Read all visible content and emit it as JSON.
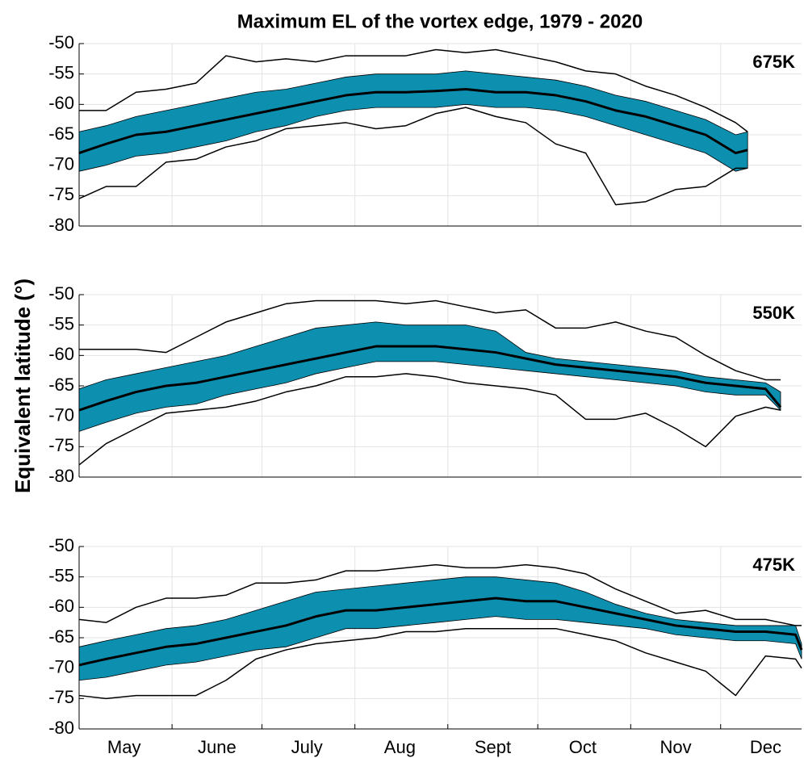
{
  "chart_data": [
    {
      "type": "line",
      "title": "Maximum EL of the vortex edge, 1979 - 2020",
      "annotation": "675K",
      "x": [
        1,
        10,
        20,
        30,
        40,
        50,
        60,
        70,
        80,
        90,
        100,
        110,
        120,
        130,
        140,
        150,
        160,
        170,
        180,
        190,
        200,
        210,
        220,
        224
      ],
      "xlim": [
        1,
        242
      ],
      "xgrid": [
        32,
        62,
        93,
        124,
        154,
        185,
        215
      ],
      "ylim": [
        -80,
        -50
      ],
      "yticks": [
        -50,
        -55,
        -60,
        -65,
        -70,
        -75,
        -80
      ],
      "grid": true,
      "band": {
        "color": "#0d90b0",
        "upper": [
          -64.5,
          -63.5,
          -62,
          -61,
          -60,
          -59,
          -58,
          -57.5,
          -56.5,
          -55.5,
          -55,
          -55,
          -55,
          -54.5,
          -55,
          -55.5,
          -56,
          -57,
          -58.5,
          -59.5,
          -61,
          -62.5,
          -65,
          -64.5
        ],
        "lower": [
          -71,
          -70,
          -68.5,
          -68,
          -67,
          -66,
          -64.5,
          -63.5,
          -62,
          -61,
          -60.5,
          -60.5,
          -60.5,
          -60,
          -60.5,
          -60.5,
          -61,
          -62,
          -63.5,
          -65,
          -66.5,
          -68,
          -71,
          -70.5
        ]
      },
      "series": [
        {
          "color": "#000000",
          "width": 1.5,
          "values": [
            -61,
            -61,
            -58,
            -57.5,
            -56.5,
            -52,
            -53,
            -52.5,
            -53,
            -52,
            -52,
            -52,
            -51,
            -51.5,
            -51,
            -52,
            -53,
            -54.5,
            -55,
            -57,
            -58.5,
            -60.5,
            -63,
            -64.5
          ]
        },
        {
          "color": "#000000",
          "width": 1.5,
          "values": [
            -75.5,
            -73.5,
            -73.5,
            -69.5,
            -69,
            -67,
            -66,
            -64,
            -63.5,
            -63,
            -64,
            -63.5,
            -61.5,
            -60.5,
            -62,
            -63,
            -66.5,
            -68,
            -76.5,
            -76,
            -74,
            -73.5,
            -70.5,
            -70.5
          ]
        },
        {
          "color": "#000000",
          "width": 3,
          "values": [
            -68,
            -66.5,
            -65,
            -64.5,
            -63.5,
            -62.5,
            -61.5,
            -60.5,
            -59.5,
            -58.5,
            -58,
            -58,
            -57.8,
            -57.5,
            -58,
            -58,
            -58.5,
            -59.5,
            -61,
            -62,
            -63.5,
            -65,
            -68,
            -67.5
          ]
        }
      ]
    },
    {
      "type": "line",
      "ylabel": "Equivalent latitude (°)",
      "annotation": "550K",
      "x": [
        1,
        10,
        20,
        30,
        40,
        50,
        60,
        70,
        80,
        90,
        100,
        110,
        120,
        130,
        140,
        150,
        160,
        170,
        180,
        190,
        200,
        210,
        220,
        230,
        235
      ],
      "xlim": [
        1,
        242
      ],
      "xgrid": [
        32,
        62,
        93,
        124,
        154,
        185,
        215
      ],
      "ylim": [
        -80,
        -50
      ],
      "yticks": [
        -50,
        -55,
        -60,
        -65,
        -70,
        -75,
        -80
      ],
      "grid": true,
      "band": {
        "color": "#0d90b0",
        "upper": [
          -65.5,
          -64,
          -63,
          -62,
          -61,
          -60,
          -58.5,
          -57,
          -55.5,
          -55,
          -54.5,
          -55,
          -55,
          -55,
          -56,
          -59.5,
          -60.5,
          -61,
          -61.5,
          -62,
          -62.5,
          -63.5,
          -64,
          -64.5,
          -66
        ],
        "lower": [
          -72.5,
          -71,
          -69.5,
          -68.5,
          -68,
          -66.5,
          -65.5,
          -64.5,
          -63,
          -62,
          -61,
          -61,
          -61,
          -61.5,
          -62,
          -62.5,
          -63,
          -63.5,
          -64,
          -64.5,
          -65,
          -66,
          -66.5,
          -66.5,
          -69
        ]
      },
      "series": [
        {
          "color": "#000000",
          "width": 1.5,
          "values": [
            -59,
            -59,
            -59,
            -59.5,
            -57,
            -54.5,
            -53,
            -51.5,
            -51,
            -51,
            -51,
            -51.5,
            -51,
            -52,
            -53,
            -52.5,
            -55.5,
            -55.5,
            -54.5,
            -56,
            -57,
            -60,
            -62.5,
            -64,
            -64
          ]
        },
        {
          "color": "#000000",
          "width": 1.5,
          "values": [
            -78,
            -74.5,
            -72,
            -69.5,
            -69,
            -68.5,
            -67.5,
            -66,
            -65,
            -63.5,
            -63.5,
            -63,
            -63.5,
            -64.5,
            -65,
            -65.5,
            -66.5,
            -70.5,
            -70.5,
            -69.5,
            -72,
            -75,
            -70,
            -68.5,
            -69
          ]
        },
        {
          "color": "#000000",
          "width": 3,
          "values": [
            -69,
            -67.5,
            -66,
            -65,
            -64.5,
            -63.5,
            -62.5,
            -61.5,
            -60.5,
            -59.5,
            -58.5,
            -58.5,
            -58.5,
            -59,
            -59.5,
            -60.5,
            -61.5,
            -62,
            -62.5,
            -63,
            -63.5,
            -64.5,
            -65,
            -65.5,
            -68.5
          ]
        }
      ]
    },
    {
      "type": "line",
      "annotation": "475K",
      "x": [
        1,
        10,
        20,
        30,
        40,
        50,
        60,
        70,
        80,
        90,
        100,
        110,
        120,
        130,
        140,
        150,
        160,
        170,
        180,
        190,
        200,
        210,
        220,
        230,
        240,
        242
      ],
      "xlim": [
        1,
        242
      ],
      "xgrid": [
        32,
        62,
        93,
        124,
        154,
        185,
        215
      ],
      "xticks": [
        {
          "value": 16,
          "label": "May"
        },
        {
          "value": 47,
          "label": "June"
        },
        {
          "value": 77,
          "label": "July"
        },
        {
          "value": 108,
          "label": "Aug"
        },
        {
          "value": 139,
          "label": "Sept"
        },
        {
          "value": 169,
          "label": "Oct"
        },
        {
          "value": 200,
          "label": "Nov"
        },
        {
          "value": 230,
          "label": "Dec"
        }
      ],
      "ylim": [
        -80,
        -50
      ],
      "yticks": [
        -50,
        -55,
        -60,
        -65,
        -70,
        -75,
        -80
      ],
      "grid": true,
      "band": {
        "color": "#0d90b0",
        "upper": [
          -66.5,
          -65.5,
          -64.5,
          -63.5,
          -63,
          -62,
          -60.5,
          -59,
          -57.5,
          -57,
          -56.5,
          -56,
          -55.5,
          -55,
          -55,
          -55.5,
          -56,
          -57.5,
          -59.5,
          -61,
          -62,
          -62.5,
          -63,
          -63,
          -63,
          -66
        ],
        "lower": [
          -72,
          -71.5,
          -70.5,
          -69.5,
          -69,
          -68,
          -67,
          -66.5,
          -65,
          -63.5,
          -63.5,
          -63,
          -62.5,
          -62,
          -61.5,
          -62,
          -62,
          -62.5,
          -63,
          -63.5,
          -64.5,
          -65,
          -65.5,
          -65.5,
          -66,
          -68.5
        ]
      },
      "series": [
        {
          "color": "#000000",
          "width": 1.5,
          "values": [
            -62,
            -62.5,
            -60,
            -58.5,
            -58.5,
            -58,
            -56,
            -56,
            -55.5,
            -54,
            -54,
            -53.5,
            -53,
            -53.5,
            -53.5,
            -53,
            -53.5,
            -54.5,
            -57,
            -59,
            -61,
            -60.5,
            -62,
            -62,
            -63,
            -63
          ]
        },
        {
          "color": "#000000",
          "width": 1.5,
          "values": [
            -74.5,
            -75,
            -74.5,
            -74.5,
            -74.5,
            -72,
            -68.5,
            -67,
            -66,
            -65.5,
            -65,
            -64,
            -64,
            -63.5,
            -63.5,
            -63.5,
            -63.5,
            -64.5,
            -65.5,
            -67.5,
            -69,
            -70.5,
            -74.5,
            -68,
            -68.5,
            -70
          ]
        },
        {
          "color": "#000000",
          "width": 3,
          "values": [
            -69.5,
            -68.5,
            -67.5,
            -66.5,
            -66,
            -65,
            -64,
            -63,
            -61.5,
            -60.5,
            -60.5,
            -60,
            -59.5,
            -59,
            -58.5,
            -59,
            -59,
            -60,
            -61,
            -62,
            -63,
            -63.5,
            -64,
            -64,
            -64.5,
            -67
          ]
        }
      ]
    }
  ]
}
